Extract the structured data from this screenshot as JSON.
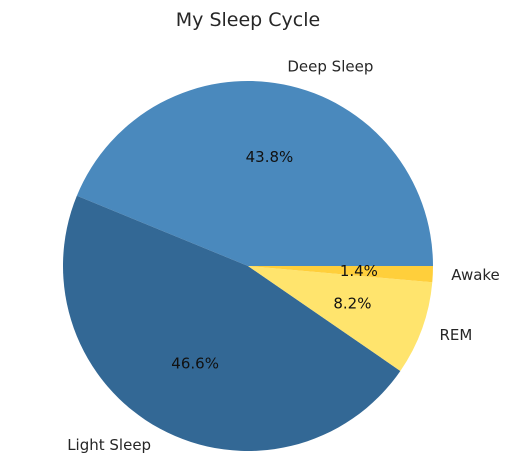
{
  "chart_data": {
    "type": "pie",
    "title": "My Sleep Cycle",
    "start_angle_deg": 0,
    "direction": "counterclockwise",
    "slices": [
      {
        "label": "Deep Sleep",
        "value": 43.8,
        "pct_label": "43.8%",
        "color": "#4a89bd"
      },
      {
        "label": "Light Sleep",
        "value": 46.6,
        "pct_label": "46.6%",
        "color": "#336895"
      },
      {
        "label": "REM",
        "value": 8.2,
        "pct_label": "8.2%",
        "color": "#ffe46d"
      },
      {
        "label": "Awake",
        "value": 1.4,
        "pct_label": "1.4%",
        "color": "#ffcf3b"
      }
    ]
  }
}
